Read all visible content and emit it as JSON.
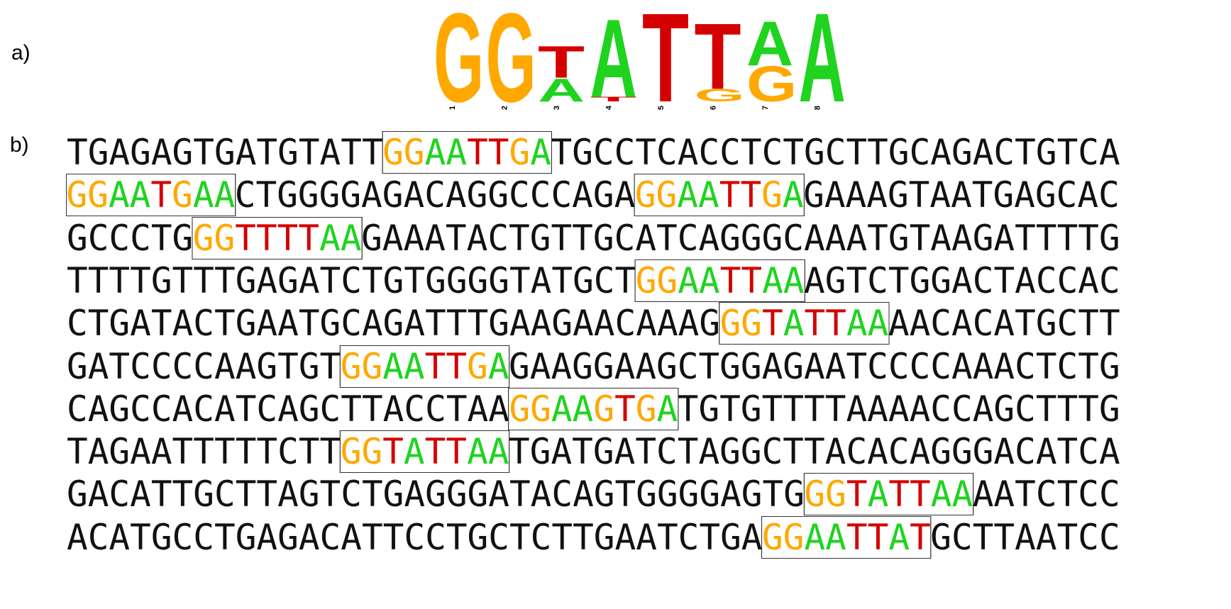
{
  "panels": {
    "a": "a)",
    "b": "b)"
  },
  "colors": {
    "A": "#1fd31f",
    "G": "#ffa800",
    "T": "#d40000",
    "C": "#1a1aff",
    "plain": "#111111"
  },
  "logo": {
    "positions": [
      {
        "num": "1",
        "stack": [
          {
            "base": "G",
            "weight": 1.0
          }
        ]
      },
      {
        "num": "2",
        "stack": [
          {
            "base": "G",
            "weight": 1.0
          }
        ]
      },
      {
        "num": "3",
        "stack": [
          {
            "base": "A",
            "weight": 0.26
          },
          {
            "base": "T",
            "weight": 0.36
          }
        ]
      },
      {
        "num": "4",
        "stack": [
          {
            "base": "T",
            "weight": 0.05
          },
          {
            "base": "A",
            "weight": 0.88
          }
        ]
      },
      {
        "num": "5",
        "stack": [
          {
            "base": "T",
            "weight": 1.0
          }
        ]
      },
      {
        "num": "6",
        "stack": [
          {
            "base": "G",
            "weight": 0.14
          },
          {
            "base": "T",
            "weight": 0.74
          }
        ]
      },
      {
        "num": "7",
        "stack": [
          {
            "base": "G",
            "weight": 0.4
          },
          {
            "base": "A",
            "weight": 0.5
          }
        ]
      },
      {
        "num": "8",
        "stack": [
          {
            "base": "A",
            "weight": 1.0
          }
        ]
      }
    ]
  },
  "sequence": {
    "lines": [
      [
        {
          "t": "TGAGAGTGATGTATT"
        },
        {
          "t": "GGAATTGA",
          "motif": true
        },
        {
          "t": "TGCCTCACCTCTGCTTGCAGACTGTCA"
        }
      ],
      [
        {
          "t": "GGAATGAA",
          "motif": true
        },
        {
          "t": "CTGGGGAGACAGGCCCAGA"
        },
        {
          "t": "GGAATTGA",
          "motif": true
        },
        {
          "t": "GAAAGTAATGAGCAC"
        }
      ],
      [
        {
          "t": "GCCCTG"
        },
        {
          "t": "GGTTTTAA",
          "motif": true
        },
        {
          "t": "GAAATACTGTTGCATCAGGGCAAATGTAAGATTTTG"
        }
      ],
      [
        {
          "t": "TTTTGTTTGAGATCTGTGGGGTATGCT"
        },
        {
          "t": "GGAATTAA",
          "motif": true
        },
        {
          "t": "AGTCTGGACTACCAC"
        }
      ],
      [
        {
          "t": "CTGATACTGAATGCAGATTTGAAGAACAAAG"
        },
        {
          "t": "GGTATTAA",
          "motif": true
        },
        {
          "t": "AACACATGCTT"
        }
      ],
      [
        {
          "t": "GATCCCCAAGTGT"
        },
        {
          "t": "GGAATTGA",
          "motif": true
        },
        {
          "t": "GAAGGAAGCTGGAGAATCCCCAAACTCTG"
        }
      ],
      [
        {
          "t": "CAGCCACATCAGCTTACCTAA"
        },
        {
          "t": "GGAAGTGA",
          "motif": true
        },
        {
          "t": "TGTGTTTTAAAACCAGCTTTG"
        }
      ],
      [
        {
          "t": "TAGAATTTTTCTT"
        },
        {
          "t": "GGTATTAA",
          "motif": true
        },
        {
          "t": "TGATGATCTAGGCTTACACAGGGACATCA"
        }
      ],
      [
        {
          "t": "GACATTGCTTAGTCTGAGGGATACAGTGGGGAGTG"
        },
        {
          "t": "GGTATTAA",
          "motif": true
        },
        {
          "t": "AATCTCC"
        }
      ],
      [
        {
          "t": "ACATGCCTGAGACATTCCTGCTCTTGAATCTGA"
        },
        {
          "t": "GGAATTAT",
          "motif": true
        },
        {
          "t": "GCTTAATCC"
        }
      ]
    ]
  }
}
